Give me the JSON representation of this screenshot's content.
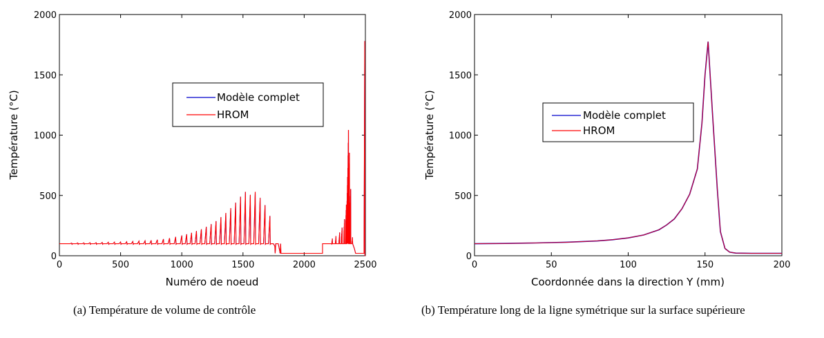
{
  "chart_data": [
    {
      "type": "line",
      "xlabel": "Numéro de noeud",
      "ylabel": "Température (°C)",
      "xlim": [
        0,
        2500
      ],
      "ylim": [
        0,
        2000
      ],
      "xticks": [
        "0",
        "500",
        "1000",
        "1500",
        "2000",
        "2500"
      ],
      "yticks": [
        "0",
        "500",
        "1000",
        "1500",
        "2000"
      ],
      "grid": false,
      "legend_position": "center-right",
      "series": [
        {
          "name": "Modèle complet",
          "color": "#0000cc"
        },
        {
          "name": "HROM",
          "color": "#ff0000"
        }
      ],
      "baseline_segments": [
        {
          "x": [
            0,
            1750
          ],
          "y": 100
        },
        {
          "x": [
            1750,
            2150
          ],
          "y": 20
        },
        {
          "x": [
            2150,
            2450
          ],
          "y": 100
        }
      ],
      "oscillation_peaks": {
        "x": [
          100,
          150,
          200,
          250,
          300,
          350,
          400,
          450,
          500,
          550,
          600,
          650,
          700,
          750,
          800,
          850,
          900,
          950,
          1000,
          1040,
          1080,
          1120,
          1160,
          1200,
          1240,
          1280,
          1320,
          1360,
          1400,
          1440,
          1480,
          1520,
          1560,
          1600,
          1640,
          1680,
          1720,
          1760,
          1800
        ],
        "y": [
          105,
          106,
          107,
          108,
          108,
          110,
          112,
          113,
          114,
          116,
          118,
          121,
          124,
          128,
          132,
          138,
          146,
          156,
          168,
          178,
          190,
          205,
          220,
          240,
          262,
          287,
          320,
          355,
          395,
          440,
          490,
          530,
          505,
          530,
          480,
          420,
          330,
          80,
          40
        ]
      },
      "spike_cluster": {
        "x": [
          2230,
          2260,
          2290,
          2310,
          2330,
          2345,
          2355,
          2362,
          2370,
          2380,
          2395
        ],
        "y": [
          140,
          160,
          190,
          230,
          300,
          420,
          650,
          1040,
          850,
          550,
          150
        ]
      },
      "final_spike": {
        "x": 2495,
        "y": 1780
      }
    },
    {
      "type": "line",
      "xlabel": "Coordonnée dans la direction Y (mm)",
      "ylabel": "Température (°C)",
      "xlim": [
        0,
        200
      ],
      "ylim": [
        0,
        2000
      ],
      "xticks": [
        "0",
        "50",
        "100",
        "150",
        "200"
      ],
      "yticks": [
        "0",
        "500",
        "1000",
        "1500",
        "2000"
      ],
      "grid": false,
      "legend_position": "center-right",
      "series": [
        {
          "name": "Modèle complet",
          "color": "#0000cc"
        },
        {
          "name": "HROM",
          "color": "#ff0000"
        }
      ],
      "x": [
        0,
        20,
        40,
        60,
        80,
        90,
        100,
        110,
        120,
        125,
        130,
        135,
        140,
        145,
        148,
        150,
        152,
        155,
        158,
        160,
        163,
        166,
        170,
        180,
        190,
        200
      ],
      "y": [
        100,
        102,
        106,
        112,
        123,
        133,
        148,
        172,
        215,
        255,
        305,
        390,
        510,
        720,
        1100,
        1500,
        1775,
        1150,
        550,
        200,
        60,
        30,
        22,
        20,
        20,
        20
      ]
    }
  ],
  "captions": [
    "(a)  Température de volume de contrôle",
    "(b)  Température long de la ligne symétrique sur la surface supérieure"
  ]
}
